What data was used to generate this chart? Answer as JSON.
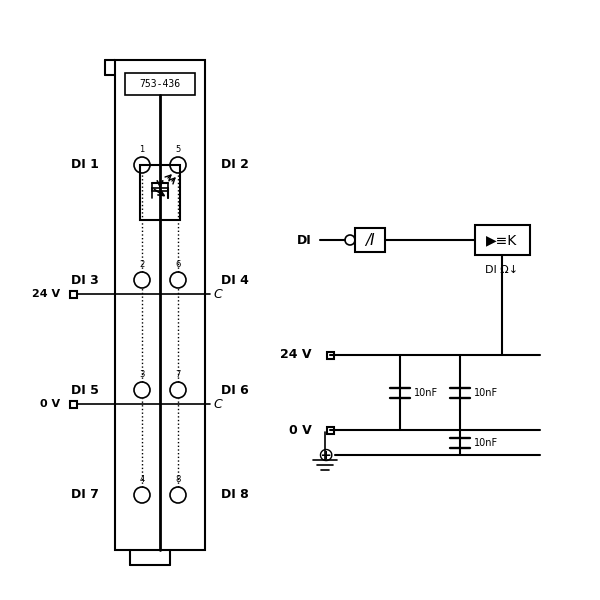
{
  "bg_color": "#ffffff",
  "line_color": "#000000",
  "title_label": "753-436",
  "di_labels_left": [
    "DI 1",
    "DI 3",
    "DI 5",
    "DI 7"
  ],
  "di_labels_right": [
    "DI 2",
    "DI 4",
    "DI 6",
    "DI 8"
  ],
  "voltage_labels": [
    "24 V",
    "0 V"
  ],
  "schematic_labels": [
    "DI",
    "24 V",
    "0 V",
    "DIΩ",
    "10nF",
    "10nF",
    "10nF"
  ]
}
